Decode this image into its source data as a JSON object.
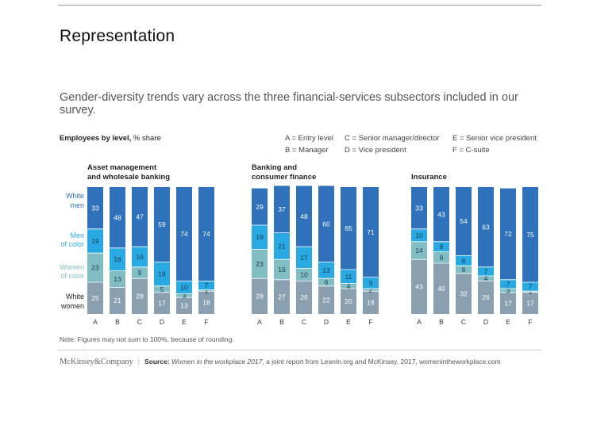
{
  "section_title": "Representation",
  "intro": "Gender-diversity trends vary across the three financial-services subsectors included in our survey.",
  "ylabel": {
    "bold": "Employees by level,",
    "rest": " % share"
  },
  "legend": [
    "A = Entry level",
    "B = Manager",
    "C = Senior manager/director",
    "D = Vice president",
    "E = Senior vice president",
    "F = C-suite"
  ],
  "footnote": "Note: Figures may not sum to 100%, because of rounding.",
  "footer": {
    "logo": "McKinsey&Company",
    "separator": "|",
    "source_label": "Source:",
    "source_title": "Women in the workplace 2017",
    "source_rest": ", a joint report from LeanIn.org and McKinsey, 2017, womenintheworkplace.com"
  },
  "colors": {
    "white_men": "#2f71bb",
    "men_of_color": "#29a9e2",
    "women_of_color": "#80bec3",
    "white_women": "#8aa0b0"
  },
  "chart_data": {
    "type": "bar",
    "stacked": true,
    "orientation": "vertical",
    "categories": [
      "A",
      "B",
      "C",
      "D",
      "E",
      "F"
    ],
    "series_order_bottom_to_top": [
      "White women",
      "Women of color",
      "Men of color",
      "White men"
    ],
    "series_labels": [
      {
        "key": "white_men",
        "lines": [
          "White",
          "men"
        ]
      },
      {
        "key": "men_of_color",
        "lines": [
          "Men",
          "of color"
        ]
      },
      {
        "key": "women_of_color",
        "lines": [
          "Women",
          "of color"
        ]
      },
      {
        "key": "white_women",
        "lines": [
          "White",
          "women"
        ]
      }
    ],
    "panels": [
      {
        "title_lines": [
          "Asset management",
          "and wholesale banking"
        ],
        "white_women": [
          25,
          21,
          28,
          17,
          13,
          18
        ],
        "women_of_color": [
          23,
          13,
          9,
          5,
          3,
          1
        ],
        "men_of_color": [
          19,
          18,
          16,
          19,
          10,
          7
        ],
        "white_men": [
          33,
          48,
          47,
          59,
          74,
          74
        ]
      },
      {
        "title_lines": [
          "Banking and",
          "consumer finance"
        ],
        "white_women": [
          28,
          27,
          26,
          22,
          20,
          18
        ],
        "women_of_color": [
          23,
          16,
          10,
          6,
          4,
          2
        ],
        "men_of_color": [
          19,
          21,
          17,
          13,
          11,
          9
        ],
        "white_men": [
          29,
          37,
          48,
          60,
          65,
          71
        ]
      },
      {
        "title_lines": [
          "Insurance"
        ],
        "white_women": [
          43,
          40,
          32,
          26,
          17,
          17
        ],
        "women_of_color": [
          14,
          9,
          6,
          4,
          3,
          1
        ],
        "men_of_color": [
          10,
          8,
          8,
          7,
          7,
          7
        ],
        "white_men": [
          33,
          43,
          54,
          63,
          72,
          75
        ]
      }
    ],
    "ylim": [
      0,
      100
    ],
    "grid": false,
    "legend_placement": "top-right"
  }
}
